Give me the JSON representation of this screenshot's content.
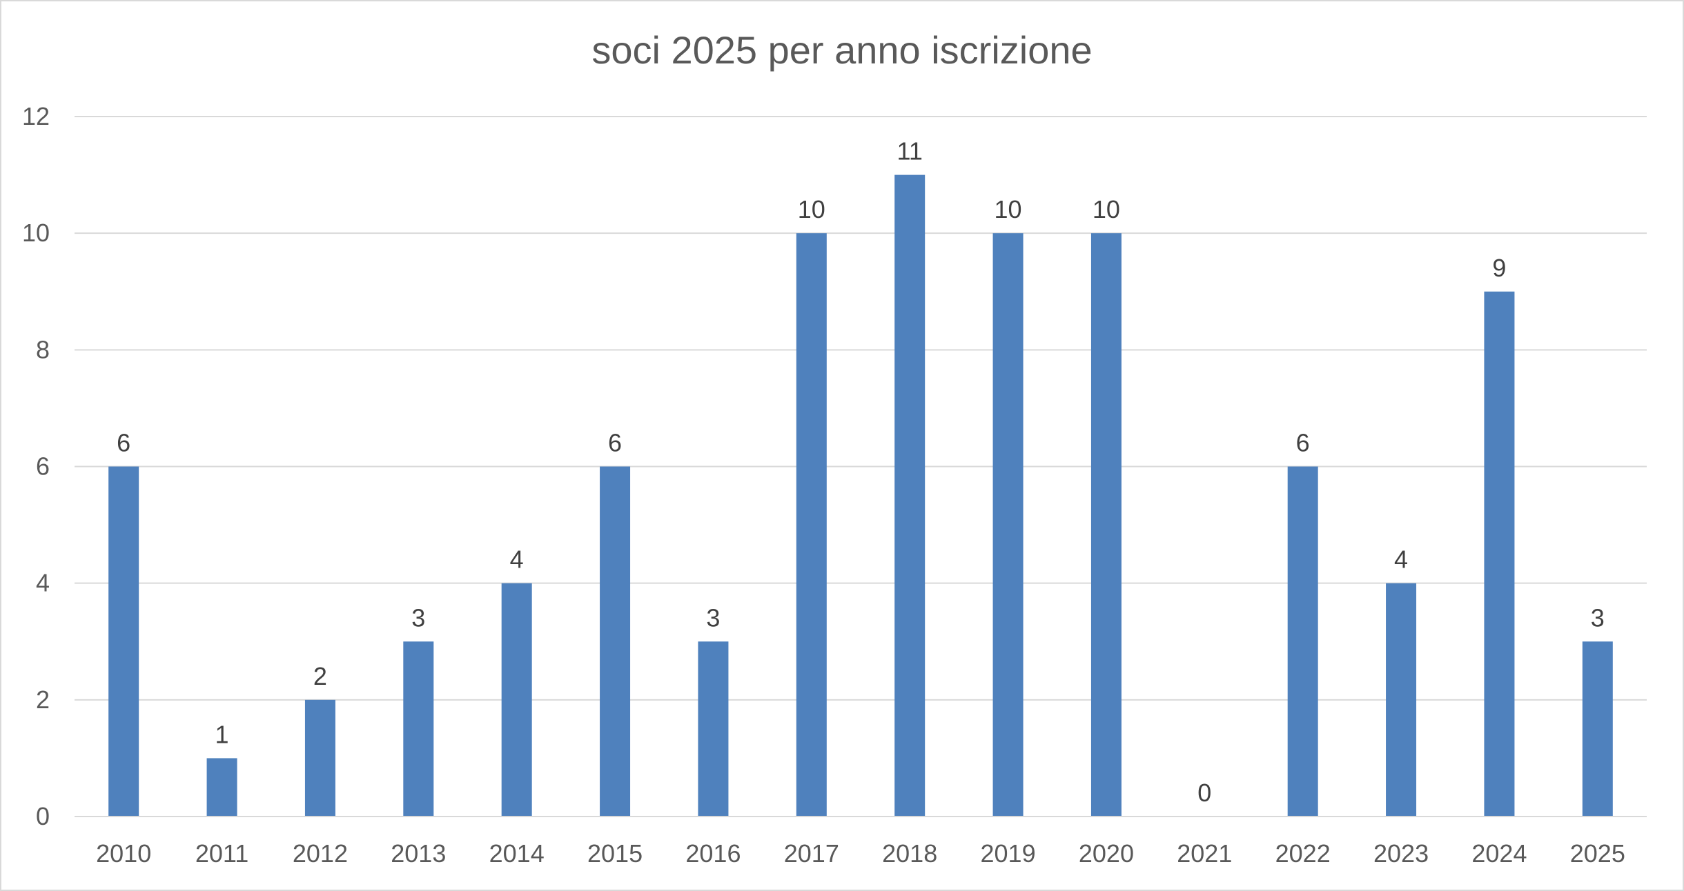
{
  "chart_data": {
    "type": "bar",
    "title": "soci 2025 per anno iscrizione",
    "xlabel": "",
    "ylabel": "",
    "categories": [
      "2010",
      "2011",
      "2012",
      "2013",
      "2014",
      "2015",
      "2016",
      "2017",
      "2018",
      "2019",
      "2020",
      "2021",
      "2022",
      "2023",
      "2024",
      "2025"
    ],
    "values": [
      6,
      1,
      2,
      3,
      4,
      6,
      3,
      10,
      11,
      10,
      10,
      0,
      6,
      4,
      9,
      3
    ],
    "ylim": [
      0,
      12
    ],
    "yticks": [
      "0",
      "2",
      "4",
      "6",
      "8",
      "10",
      "12"
    ],
    "grid": true,
    "legend": "none",
    "data_labels": true,
    "colors": {
      "bar": "#4f81bd",
      "grid": "#d9d9d9",
      "axis": "#d9d9d9"
    }
  }
}
